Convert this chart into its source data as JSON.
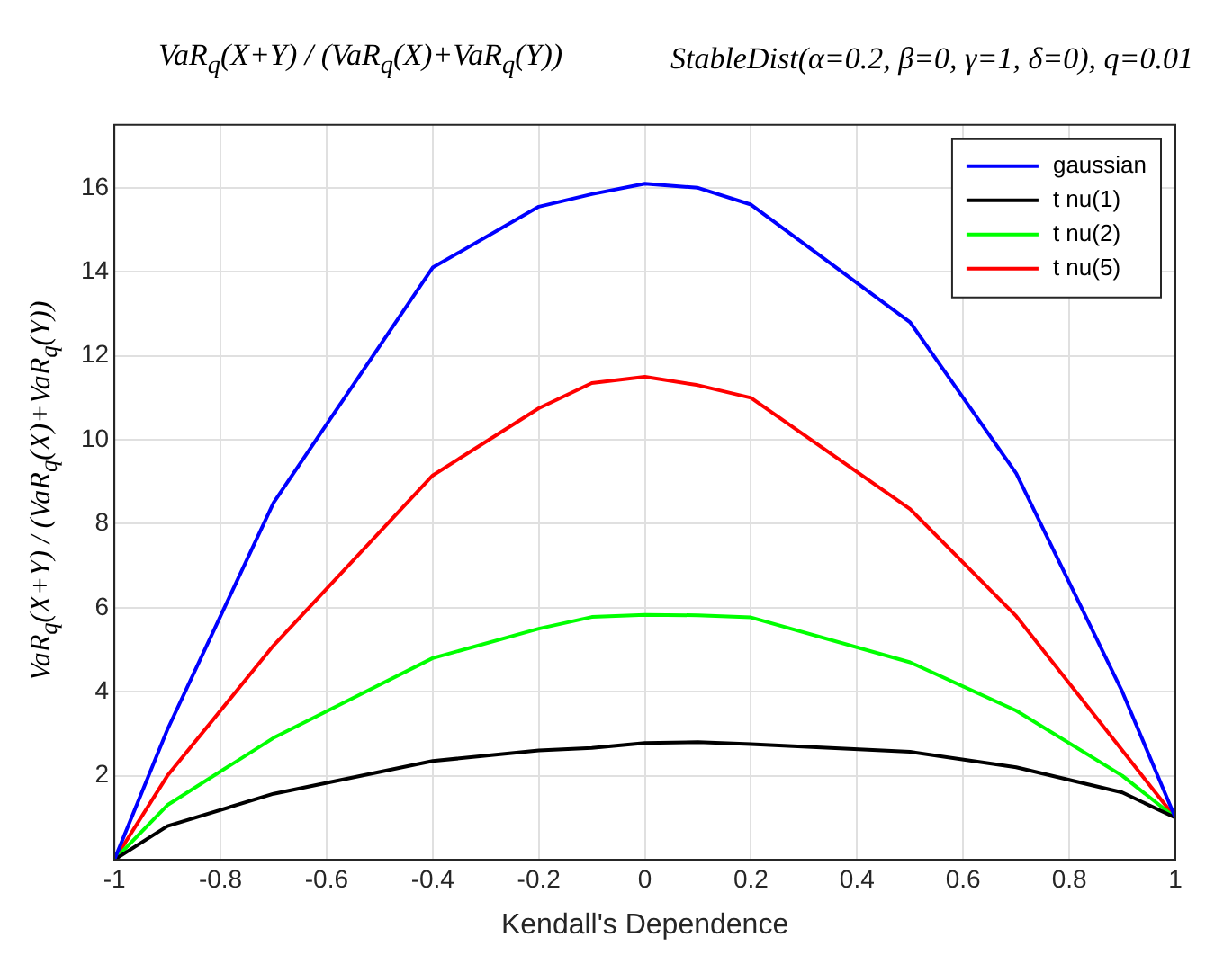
{
  "chart_data": {
    "type": "line",
    "title": "VaR$_{q}$(X+Y) / (VaR$_{q}$(X)+VaR$_{q}$(Y))",
    "subtitle": "StableDist(α=0.2, β=0, γ=1, δ=0), q=0.01",
    "xlabel": "Kendall's Dependence",
    "ylabel": "VaR$_{q}$(X+Y) / (VaR$_{q}$(X)+VaR$_{q}$(Y))",
    "x": [
      -1,
      -0.9,
      -0.7,
      -0.4,
      -0.2,
      -0.1,
      0,
      0.1,
      0.2,
      0.5,
      0.7,
      0.9,
      1
    ],
    "series": [
      {
        "name": "gaussian",
        "color": "#0000ff",
        "values": [
          0,
          3.1,
          8.5,
          14.1,
          15.55,
          15.85,
          16.1,
          16.0,
          15.6,
          12.8,
          9.2,
          4.0,
          1.0
        ]
      },
      {
        "name": "t nu(1)",
        "color": "#000000",
        "values": [
          0,
          0.8,
          1.57,
          2.35,
          2.6,
          2.66,
          2.78,
          2.8,
          2.75,
          2.57,
          2.2,
          1.6,
          1.0
        ]
      },
      {
        "name": "t nu(2)",
        "color": "#00ff00",
        "values": [
          0,
          1.3,
          2.9,
          4.8,
          5.5,
          5.78,
          5.83,
          5.82,
          5.77,
          4.7,
          3.55,
          2.0,
          1.0
        ]
      },
      {
        "name": "t nu(5)",
        "color": "#ff0000",
        "values": [
          0,
          2.0,
          5.1,
          9.15,
          10.75,
          11.35,
          11.5,
          11.3,
          11.0,
          8.35,
          5.8,
          2.6,
          1.0
        ]
      }
    ],
    "xlim": [
      -1,
      1
    ],
    "xticks": [
      -1,
      -0.8,
      -0.6,
      -0.4,
      -0.2,
      0,
      0.2,
      0.4,
      0.6,
      0.8,
      1
    ],
    "ylim": [
      0,
      17.5
    ],
    "yticks": [
      2,
      4,
      6,
      8,
      10,
      12,
      14,
      16
    ],
    "grid": true,
    "legend": "top right",
    "marker": "none",
    "line_style": "solid"
  }
}
